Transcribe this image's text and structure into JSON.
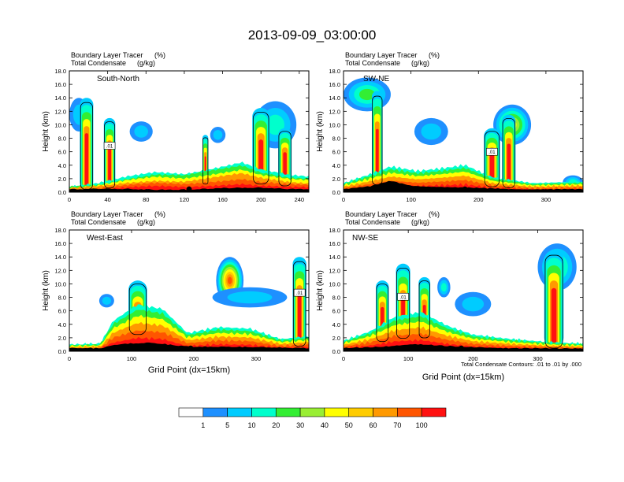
{
  "title": "2013-09-09_03:00:00",
  "footnote": "Total Condensate Contours: .01 to .01 by .000",
  "colorbar": {
    "labels": [
      "1",
      "5",
      "10",
      "20",
      "30",
      "40",
      "50",
      "60",
      "70",
      "100"
    ],
    "colors": [
      "#ffffff",
      "#1e90ff",
      "#00ccff",
      "#00ffcc",
      "#33ee33",
      "#99ee33",
      "#ffff00",
      "#ffcc00",
      "#ff9900",
      "#ff5500",
      "#ff1111"
    ]
  },
  "chart_data": [
    {
      "type": "heatmap",
      "panel": "South-North",
      "label_left_1": "Boundary Layer Tracer",
      "label_right_1": "(%)",
      "label_left_2": "Total Condensate",
      "label_right_2": "(g/kg)",
      "ylabel": "Height (km)",
      "xlabel": "",
      "xlim": [
        0,
        250
      ],
      "ylim": [
        0,
        18
      ],
      "xticks": [
        "0",
        "40",
        "80",
        "120",
        "160",
        "200",
        "240"
      ],
      "xtick_values": [
        0,
        40,
        80,
        120,
        160,
        200,
        240
      ],
      "yticks": [
        "0.0",
        "2.0",
        "4.0",
        "6.0",
        "8.0",
        "10.0",
        "12.0",
        "14.0",
        "16.0",
        "18.0"
      ],
      "contour_label": ".01",
      "marker_x": 125,
      "terrain": [
        [
          0,
          0.35
        ],
        [
          30,
          0.45
        ],
        [
          60,
          0.4
        ],
        [
          90,
          0.3
        ],
        [
          125,
          0.3
        ],
        [
          160,
          0.55
        ],
        [
          200,
          0.6
        ],
        [
          230,
          0.4
        ],
        [
          250,
          0.4
        ]
      ],
      "boundary_layer_top": [
        [
          0,
          0.8
        ],
        [
          30,
          1.2
        ],
        [
          60,
          2.0
        ],
        [
          90,
          2.6
        ],
        [
          120,
          2.4
        ],
        [
          150,
          3.2
        ],
        [
          180,
          4.0
        ],
        [
          200,
          3.0
        ],
        [
          230,
          2.2
        ],
        [
          250,
          2.0
        ]
      ],
      "plumes": [
        {
          "x": 18,
          "width": 14,
          "top": 14.0
        },
        {
          "x": 42,
          "width": 12,
          "top": 11.0
        },
        {
          "x": 142,
          "width": 6,
          "top": 8.5
        },
        {
          "x": 200,
          "width": 18,
          "top": 12.5
        },
        {
          "x": 225,
          "width": 14,
          "top": 9.5
        }
      ],
      "blobs": [
        {
          "x": 10,
          "y": 11.5,
          "rx": 10,
          "ry": 2.5,
          "value": 5
        },
        {
          "x": 75,
          "y": 9.0,
          "rx": 12,
          "ry": 1.5,
          "value": 5
        },
        {
          "x": 155,
          "y": 8.5,
          "rx": 8,
          "ry": 1.2,
          "value": 5
        },
        {
          "x": 215,
          "y": 10.0,
          "rx": 22,
          "ry": 3.5,
          "value": 10
        }
      ]
    },
    {
      "type": "heatmap",
      "panel": "SW-NE",
      "label_left_1": "Boundary Layer Tracer",
      "label_right_1": "(%)",
      "label_left_2": "Total Condensate",
      "label_right_2": "(g/kg)",
      "ylabel": "Height (km)",
      "xlabel": "",
      "xlim": [
        0,
        355
      ],
      "ylim": [
        0,
        18
      ],
      "xticks": [
        "0",
        "100",
        "200",
        "300"
      ],
      "xtick_values": [
        0,
        100,
        200,
        300
      ],
      "yticks": [
        "0.0",
        "2.0",
        "4.0",
        "6.0",
        "8.0",
        "10.0",
        "12.0",
        "14.0",
        "16.0",
        "18.0"
      ],
      "contour_label": ".01",
      "marker_x": 180,
      "terrain": [
        [
          0,
          0.4
        ],
        [
          40,
          0.8
        ],
        [
          70,
          1.6
        ],
        [
          100,
          0.9
        ],
        [
          150,
          0.7
        ],
        [
          180,
          0.6
        ],
        [
          250,
          0.4
        ],
        [
          355,
          0.35
        ]
      ],
      "boundary_layer_top": [
        [
          0,
          1.2
        ],
        [
          40,
          2.4
        ],
        [
          70,
          3.4
        ],
        [
          110,
          2.8
        ],
        [
          150,
          3.2
        ],
        [
          180,
          3.6
        ],
        [
          220,
          2.0
        ],
        [
          280,
          1.2
        ],
        [
          355,
          1.4
        ]
      ],
      "plumes": [
        {
          "x": 50,
          "width": 16,
          "top": 15.0
        },
        {
          "x": 220,
          "width": 24,
          "top": 9.5
        },
        {
          "x": 245,
          "width": 20,
          "top": 11.5
        }
      ],
      "blobs": [
        {
          "x": 35,
          "y": 14.5,
          "rx": 35,
          "ry": 2.5,
          "value": 20
        },
        {
          "x": 130,
          "y": 9.0,
          "rx": 25,
          "ry": 2.0,
          "value": 5
        },
        {
          "x": 250,
          "y": 10.0,
          "rx": 28,
          "ry": 3.0,
          "value": 40
        },
        {
          "x": 340,
          "y": 1.5,
          "rx": 15,
          "ry": 1.0,
          "value": 10
        }
      ]
    },
    {
      "type": "heatmap",
      "panel": "West-East",
      "label_left_1": "Boundary Layer Tracer",
      "label_right_1": "(%)",
      "label_left_2": "Total Condensate",
      "label_right_2": "(g/kg)",
      "ylabel": "Height (km)",
      "xlabel": "Grid Point (dx=15km)",
      "xlim": [
        0,
        385
      ],
      "ylim": [
        0,
        18
      ],
      "xticks": [
        "0",
        "100",
        "200",
        "300"
      ],
      "xtick_values": [
        0,
        100,
        200,
        300
      ],
      "yticks": [
        "0.0",
        "2.0",
        "4.0",
        "6.0",
        "8.0",
        "10.0",
        "12.0",
        "14.0",
        "16.0",
        "18.0"
      ],
      "contour_label": ".01",
      "marker_x": 195,
      "terrain": [
        [
          0,
          0.4
        ],
        [
          50,
          0.4
        ],
        [
          80,
          1.0
        ],
        [
          130,
          1.2
        ],
        [
          195,
          0.6
        ],
        [
          260,
          0.6
        ],
        [
          330,
          0.5
        ],
        [
          385,
          0.4
        ]
      ],
      "boundary_layer_top": [
        [
          0,
          0.9
        ],
        [
          50,
          1.0
        ],
        [
          70,
          4.0
        ],
        [
          110,
          6.2
        ],
        [
          150,
          5.6
        ],
        [
          190,
          2.4
        ],
        [
          240,
          3.2
        ],
        [
          290,
          3.0
        ],
        [
          340,
          1.6
        ],
        [
          385,
          2.0
        ]
      ],
      "plumes": [
        {
          "x": 110,
          "width": 30,
          "top": 10.5
        },
        {
          "x": 370,
          "width": 22,
          "top": 14.0
        }
      ],
      "blobs": [
        {
          "x": 258,
          "y": 10.5,
          "rx": 22,
          "ry": 3.5,
          "value": 70
        },
        {
          "x": 290,
          "y": 8.0,
          "rx": 60,
          "ry": 1.5,
          "value": 5
        },
        {
          "x": 60,
          "y": 7.5,
          "rx": 12,
          "ry": 1.0,
          "value": 5
        }
      ]
    },
    {
      "type": "heatmap",
      "panel": "NW-SE",
      "label_left_1": "Boundary Layer Tracer",
      "label_right_1": "(%)",
      "label_left_2": "Total Condensate",
      "label_right_2": "(g/kg)",
      "ylabel": "Height (km)",
      "xlabel": "Grid Point (dx=15km)",
      "xlim": [
        0,
        370
      ],
      "ylim": [
        0,
        18
      ],
      "xticks": [
        "0",
        "100",
        "200",
        "300"
      ],
      "xtick_values": [
        0,
        100,
        200,
        300
      ],
      "yticks": [
        "0.0",
        "2.0",
        "4.0",
        "6.0",
        "8.0",
        "10.0",
        "12.0",
        "14.0",
        "16.0",
        "18.0"
      ],
      "contour_label": ".01",
      "marker_x": 182,
      "terrain": [
        [
          0,
          0.4
        ],
        [
          60,
          0.6
        ],
        [
          110,
          1.0
        ],
        [
          182,
          0.6
        ],
        [
          250,
          0.4
        ],
        [
          370,
          0.35
        ]
      ],
      "boundary_layer_top": [
        [
          0,
          1.4
        ],
        [
          40,
          2.6
        ],
        [
          80,
          4.6
        ],
        [
          120,
          5.2
        ],
        [
          160,
          3.4
        ],
        [
          200,
          2.2
        ],
        [
          260,
          1.6
        ],
        [
          320,
          1.2
        ],
        [
          370,
          1.0
        ]
      ],
      "plumes": [
        {
          "x": 60,
          "width": 20,
          "top": 10.5
        },
        {
          "x": 92,
          "width": 22,
          "top": 13.0
        },
        {
          "x": 125,
          "width": 18,
          "top": 11.0
        },
        {
          "x": 325,
          "width": 30,
          "top": 15.0
        }
      ],
      "blobs": [
        {
          "x": 200,
          "y": 7.0,
          "rx": 28,
          "ry": 1.8,
          "value": 5
        },
        {
          "x": 330,
          "y": 12.5,
          "rx": 30,
          "ry": 3.5,
          "value": 20
        },
        {
          "x": 155,
          "y": 9.5,
          "rx": 10,
          "ry": 1.5,
          "value": 10
        }
      ]
    }
  ]
}
